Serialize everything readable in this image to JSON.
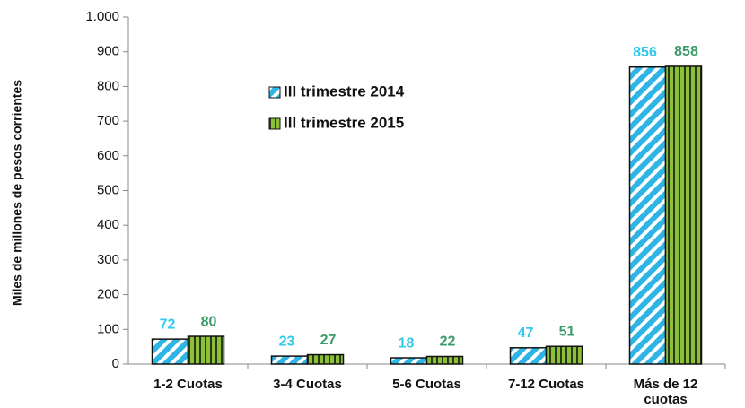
{
  "chart_data": {
    "type": "bar",
    "y_axis_label": "Miles de millones de pesos corrientes",
    "categories": [
      "1-2 Cuotas",
      "3-4 Cuotas",
      "5-6 Cuotas",
      "7-12 Cuotas",
      "Más de 12 cuotas"
    ],
    "series": [
      {
        "name": "III trimestre 2014",
        "color": "#2fb4e6",
        "label_color": "#33c8ee",
        "values": [
          72,
          23,
          18,
          47,
          856
        ]
      },
      {
        "name": "III trimestre 2015",
        "color": "#8cbf3a",
        "label_color": "#3a9a68",
        "values": [
          80,
          27,
          22,
          51,
          858
        ]
      }
    ],
    "ylim": [
      0,
      1000
    ],
    "yticks": [
      0,
      100,
      200,
      300,
      400,
      500,
      600,
      700,
      800,
      900,
      {
        "value": 1000,
        "label": "1.000"
      }
    ]
  }
}
